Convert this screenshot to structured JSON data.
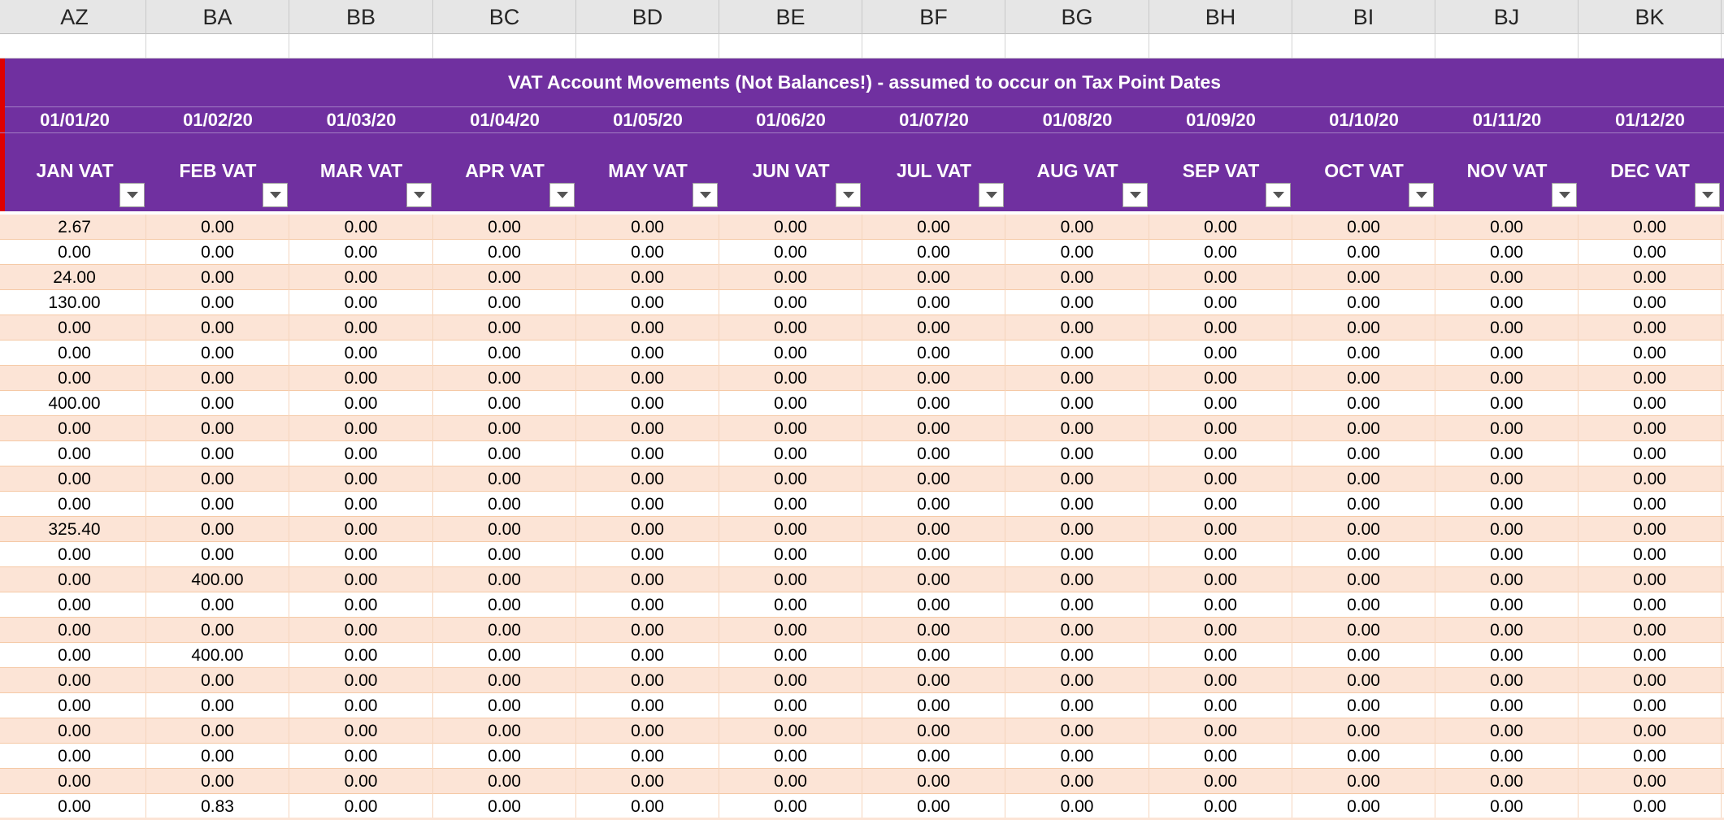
{
  "columns": [
    {
      "letter": "AZ",
      "date": "01/01/20",
      "label": "JAN VAT"
    },
    {
      "letter": "BA",
      "date": "01/02/20",
      "label": "FEB VAT"
    },
    {
      "letter": "BB",
      "date": "01/03/20",
      "label": "MAR VAT"
    },
    {
      "letter": "BC",
      "date": "01/04/20",
      "label": "APR VAT"
    },
    {
      "letter": "BD",
      "date": "01/05/20",
      "label": "MAY VAT"
    },
    {
      "letter": "BE",
      "date": "01/06/20",
      "label": "JUN VAT"
    },
    {
      "letter": "BF",
      "date": "01/07/20",
      "label": "JUL VAT"
    },
    {
      "letter": "BG",
      "date": "01/08/20",
      "label": "AUG VAT"
    },
    {
      "letter": "BH",
      "date": "01/09/20",
      "label": "SEP VAT"
    },
    {
      "letter": "BI",
      "date": "01/10/20",
      "label": "OCT VAT"
    },
    {
      "letter": "BJ",
      "date": "01/11/20",
      "label": "NOV VAT"
    },
    {
      "letter": "BK",
      "date": "01/12/20",
      "label": "DEC VAT"
    }
  ],
  "table_title": "VAT Account Movements (Not Balances!) - assumed to occur on Tax Point Dates",
  "rows": [
    [
      "2.67",
      "0.00",
      "0.00",
      "0.00",
      "0.00",
      "0.00",
      "0.00",
      "0.00",
      "0.00",
      "0.00",
      "0.00",
      "0.00"
    ],
    [
      "0.00",
      "0.00",
      "0.00",
      "0.00",
      "0.00",
      "0.00",
      "0.00",
      "0.00",
      "0.00",
      "0.00",
      "0.00",
      "0.00"
    ],
    [
      "24.00",
      "0.00",
      "0.00",
      "0.00",
      "0.00",
      "0.00",
      "0.00",
      "0.00",
      "0.00",
      "0.00",
      "0.00",
      "0.00"
    ],
    [
      "130.00",
      "0.00",
      "0.00",
      "0.00",
      "0.00",
      "0.00",
      "0.00",
      "0.00",
      "0.00",
      "0.00",
      "0.00",
      "0.00"
    ],
    [
      "0.00",
      "0.00",
      "0.00",
      "0.00",
      "0.00",
      "0.00",
      "0.00",
      "0.00",
      "0.00",
      "0.00",
      "0.00",
      "0.00"
    ],
    [
      "0.00",
      "0.00",
      "0.00",
      "0.00",
      "0.00",
      "0.00",
      "0.00",
      "0.00",
      "0.00",
      "0.00",
      "0.00",
      "0.00"
    ],
    [
      "0.00",
      "0.00",
      "0.00",
      "0.00",
      "0.00",
      "0.00",
      "0.00",
      "0.00",
      "0.00",
      "0.00",
      "0.00",
      "0.00"
    ],
    [
      "400.00",
      "0.00",
      "0.00",
      "0.00",
      "0.00",
      "0.00",
      "0.00",
      "0.00",
      "0.00",
      "0.00",
      "0.00",
      "0.00"
    ],
    [
      "0.00",
      "0.00",
      "0.00",
      "0.00",
      "0.00",
      "0.00",
      "0.00",
      "0.00",
      "0.00",
      "0.00",
      "0.00",
      "0.00"
    ],
    [
      "0.00",
      "0.00",
      "0.00",
      "0.00",
      "0.00",
      "0.00",
      "0.00",
      "0.00",
      "0.00",
      "0.00",
      "0.00",
      "0.00"
    ],
    [
      "0.00",
      "0.00",
      "0.00",
      "0.00",
      "0.00",
      "0.00",
      "0.00",
      "0.00",
      "0.00",
      "0.00",
      "0.00",
      "0.00"
    ],
    [
      "0.00",
      "0.00",
      "0.00",
      "0.00",
      "0.00",
      "0.00",
      "0.00",
      "0.00",
      "0.00",
      "0.00",
      "0.00",
      "0.00"
    ],
    [
      "325.40",
      "0.00",
      "0.00",
      "0.00",
      "0.00",
      "0.00",
      "0.00",
      "0.00",
      "0.00",
      "0.00",
      "0.00",
      "0.00"
    ],
    [
      "0.00",
      "0.00",
      "0.00",
      "0.00",
      "0.00",
      "0.00",
      "0.00",
      "0.00",
      "0.00",
      "0.00",
      "0.00",
      "0.00"
    ],
    [
      "0.00",
      "400.00",
      "0.00",
      "0.00",
      "0.00",
      "0.00",
      "0.00",
      "0.00",
      "0.00",
      "0.00",
      "0.00",
      "0.00"
    ],
    [
      "0.00",
      "0.00",
      "0.00",
      "0.00",
      "0.00",
      "0.00",
      "0.00",
      "0.00",
      "0.00",
      "0.00",
      "0.00",
      "0.00"
    ],
    [
      "0.00",
      "0.00",
      "0.00",
      "0.00",
      "0.00",
      "0.00",
      "0.00",
      "0.00",
      "0.00",
      "0.00",
      "0.00",
      "0.00"
    ],
    [
      "0.00",
      "400.00",
      "0.00",
      "0.00",
      "0.00",
      "0.00",
      "0.00",
      "0.00",
      "0.00",
      "0.00",
      "0.00",
      "0.00"
    ],
    [
      "0.00",
      "0.00",
      "0.00",
      "0.00",
      "0.00",
      "0.00",
      "0.00",
      "0.00",
      "0.00",
      "0.00",
      "0.00",
      "0.00"
    ],
    [
      "0.00",
      "0.00",
      "0.00",
      "0.00",
      "0.00",
      "0.00",
      "0.00",
      "0.00",
      "0.00",
      "0.00",
      "0.00",
      "0.00"
    ],
    [
      "0.00",
      "0.00",
      "0.00",
      "0.00",
      "0.00",
      "0.00",
      "0.00",
      "0.00",
      "0.00",
      "0.00",
      "0.00",
      "0.00"
    ],
    [
      "0.00",
      "0.00",
      "0.00",
      "0.00",
      "0.00",
      "0.00",
      "0.00",
      "0.00",
      "0.00",
      "0.00",
      "0.00",
      "0.00"
    ],
    [
      "0.00",
      "0.00",
      "0.00",
      "0.00",
      "0.00",
      "0.00",
      "0.00",
      "0.00",
      "0.00",
      "0.00",
      "0.00",
      "0.00"
    ],
    [
      "0.00",
      "0.83",
      "0.00",
      "0.00",
      "0.00",
      "0.00",
      "0.00",
      "0.00",
      "0.00",
      "0.00",
      "0.00",
      "0.00"
    ]
  ],
  "colors": {
    "header_band": "#7030a0",
    "row_band": "#fce4d6",
    "left_edge": "#e00000"
  },
  "icons": {
    "filter": "chevron-down-icon"
  }
}
